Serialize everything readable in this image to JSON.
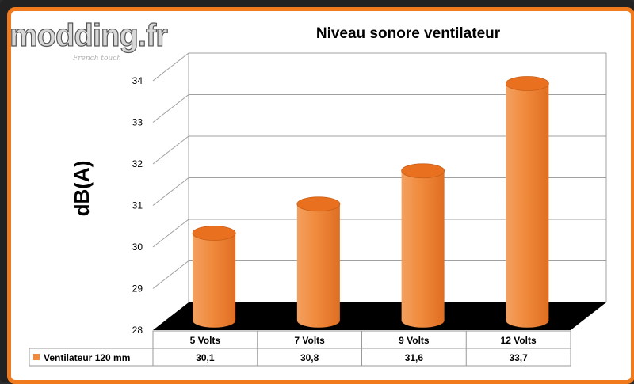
{
  "logo": {
    "text": "modding.fr",
    "tagline": "French touch"
  },
  "colors": {
    "bar": "#f08a3c",
    "bar_dark": "#d0651a",
    "bar_top": "#e8701f",
    "border": "#f07a1c",
    "floor": "#000000",
    "grid": "#a0a0a0"
  },
  "chart_data": {
    "type": "bar",
    "title": "Niveau sonore ventilateur",
    "ylabel": "dB(A)",
    "xlabel": "",
    "categories": [
      "5 Volts",
      "7 Volts",
      "9 Volts",
      "12 Volts"
    ],
    "series": [
      {
        "name": "Ventilateur 120 mm",
        "values": [
          30.1,
          30.8,
          31.6,
          33.7
        ]
      }
    ],
    "data_table": [
      "30,1",
      "30,8",
      "31,6",
      "33,7"
    ],
    "yticks": [
      "28",
      "29",
      "30",
      "31",
      "32",
      "33",
      "34"
    ],
    "ylim": [
      28,
      34
    ],
    "grid": true,
    "legend": "data-table-left",
    "shape": "3d-cylinder"
  }
}
